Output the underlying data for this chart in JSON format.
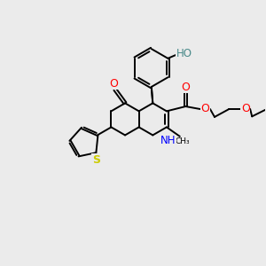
{
  "bg_color": "#ebebeb",
  "bond_color": "#000000",
  "bond_width": 1.4,
  "figsize": [
    3.0,
    3.0
  ],
  "dpi": 100,
  "colors": {
    "O": "#ff0000",
    "N": "#0000ff",
    "S": "#cccc00",
    "HO_color": "#4a8a8a",
    "C": "#000000"
  },
  "xlim": [
    0,
    10
  ],
  "ylim": [
    0,
    10
  ]
}
